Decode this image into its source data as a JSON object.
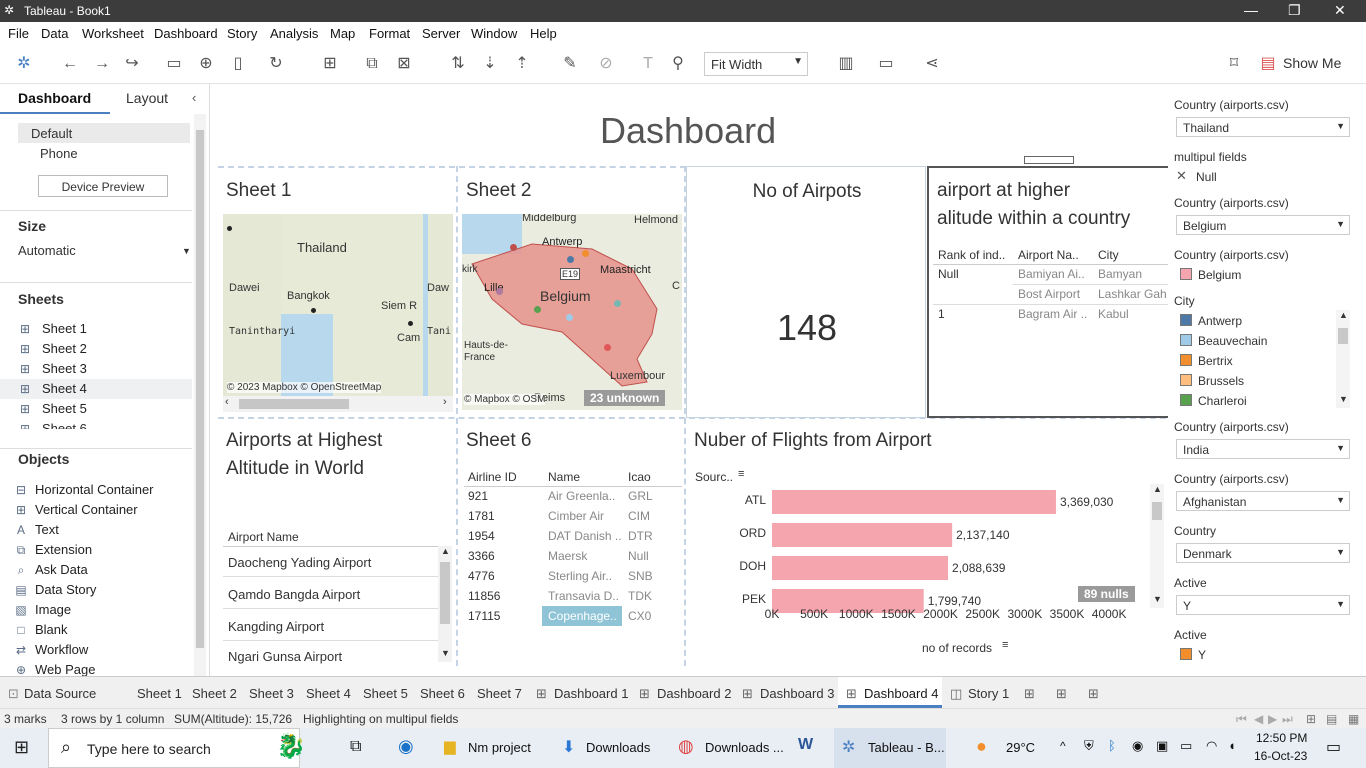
{
  "window": {
    "title": "Tableau - Book1"
  },
  "menu": [
    "File",
    "Data",
    "Worksheet",
    "Dashboard",
    "Story",
    "Analysis",
    "Map",
    "Format",
    "Server",
    "Window",
    "Help"
  ],
  "toolbar": {
    "fit_label": "Fit Width",
    "show_me": "Show Me"
  },
  "left_panel": {
    "tabs": [
      "Dashboard",
      "Layout"
    ],
    "device": {
      "default": "Default",
      "phone": "Phone",
      "preview_button": "Device Preview"
    },
    "size": {
      "title": "Size",
      "value": "Automatic"
    },
    "sheets": {
      "title": "Sheets",
      "items": [
        "Sheet 1",
        "Sheet 2",
        "Sheet 3",
        "Sheet 4",
        "Sheet 5",
        "Sheet 6"
      ]
    },
    "objects": {
      "title": "Objects",
      "items": [
        "Horizontal Container",
        "Vertical Container",
        "Text",
        "Extension",
        "Ask Data",
        "Data Story",
        "Image",
        "Blank",
        "Workflow",
        "Web Page"
      ]
    }
  },
  "dashboard": {
    "title": "Dashboard",
    "sheet1": {
      "title": "Sheet 1",
      "labels": [
        "Thailand",
        "Dawei",
        "Bangkok",
        "Siem R",
        "Tanintharyi",
        "Cam",
        "Daw",
        "Tani"
      ],
      "credit": "© 2023 Mapbox © OpenStreetMap"
    },
    "sheet2": {
      "title": "Sheet 2",
      "labels": [
        "Middelburg",
        "Helmond",
        "Antwerp",
        "Maastricht",
        "Belgium",
        "Lille",
        "Hauts-de-France",
        "Luxembour",
        "Reims",
        "E19",
        "kirk"
      ],
      "credit": "© Mapbox © OSM",
      "unknown": "23 unknown"
    },
    "no_airports": {
      "title": "No of Airpots",
      "value": "148"
    },
    "altitude_table": {
      "title_line1": "airport at higher",
      "title_line2": "alitude within a country",
      "headers": [
        "Rank of ind..",
        "Airport Na..",
        "City"
      ],
      "rows": [
        [
          "Null",
          "Bamiyan Ai..",
          "Bamyan"
        ],
        [
          "",
          "Bost Airport",
          "Lashkar Gah"
        ],
        [
          "1",
          "Bagram Air ..",
          "Kabul"
        ]
      ]
    },
    "highest_world": {
      "title_line1": "Airports at Highest",
      "title_line2": "Altitude in World",
      "header": "Airport Name",
      "rows": [
        "Daocheng Yading Airport",
        "Qamdo Bangda Airport",
        "Kangding Airport",
        "Ngari Gunsa Airport"
      ]
    },
    "sheet6": {
      "title": "Sheet 6",
      "headers": [
        "Airline ID",
        "Name",
        "Icao"
      ],
      "rows": [
        [
          "921",
          "Air Greenla..",
          "GRL"
        ],
        [
          "1781",
          "Cimber Air",
          "CIM"
        ],
        [
          "1954",
          "DAT Danish ..",
          "DTR"
        ],
        [
          "3366",
          "Maersk",
          "Null"
        ],
        [
          "4776",
          "Sterling Air..",
          "SNB"
        ],
        [
          "11856",
          "Transavia D..",
          "TDK"
        ],
        [
          "17115",
          "Copenhage..",
          "CX0"
        ]
      ]
    },
    "flights": {
      "title": "Nuber of Flights from Airport",
      "source_label": "Sourc..",
      "nulls": "89 nulls",
      "xlabel": "no of records",
      "ticks": [
        "0K",
        "500K",
        "1000K",
        "1500K",
        "2000K",
        "2500K",
        "3000K",
        "3500K",
        "4000K"
      ]
    }
  },
  "chart_data": {
    "type": "bar",
    "categories": [
      "ATL",
      "ORD",
      "DOH",
      "PEK"
    ],
    "values": [
      3369030,
      2137140,
      2088639,
      1799740
    ],
    "value_labels": [
      "3,369,030",
      "2,137,140",
      "2,088,639",
      "1,799,740"
    ],
    "xlim": [
      0,
      4200000
    ],
    "color": "#f4a5ae"
  },
  "filters": [
    {
      "label": "Country (airports.csv)",
      "value": "Thailand"
    },
    {
      "label": "multipul fields",
      "value": "Null"
    },
    {
      "label": "Country (airports.csv)",
      "value": "Belgium"
    },
    {
      "label": "Country (airports.csv)",
      "legend": "Belgium"
    },
    {
      "label": "City",
      "items": [
        {
          "name": "Antwerp",
          "color": "#4e79a7"
        },
        {
          "name": "Beauvechain",
          "color": "#a0cbe8"
        },
        {
          "name": "Bertrix",
          "color": "#f28e2b"
        },
        {
          "name": "Brussels",
          "color": "#ffbe7d"
        },
        {
          "name": "Charleroi",
          "color": "#59a14f"
        }
      ]
    },
    {
      "label": "Country (airports.csv)",
      "value": "India"
    },
    {
      "label": "Country (airports.csv)",
      "value": "Afghanistan"
    },
    {
      "label": "Country",
      "value": "Denmark"
    },
    {
      "label": "Active",
      "value": "Y"
    },
    {
      "label": "Active",
      "legend": "Y"
    }
  ],
  "tabs": [
    "Data Source",
    "Sheet 1",
    "Sheet 2",
    "Sheet 3",
    "Sheet 4",
    "Sheet 5",
    "Sheet 6",
    "Sheet 7",
    "Dashboard 1",
    "Dashboard 2",
    "Dashboard 3",
    "Dashboard 4",
    "Story 1"
  ],
  "status": {
    "marks": "3 marks",
    "rows": "3 rows by 1 column",
    "sum": "SUM(Altitude): 15,726",
    "highlight": "Highlighting on multipul fields"
  },
  "taskbar": {
    "search": "Type here to search",
    "apps": [
      "Nm project",
      "Downloads",
      "Downloads ...",
      "Tableau - B..."
    ],
    "temp": "29°C",
    "time": "12:50 PM",
    "date": "16-Oct-23"
  }
}
